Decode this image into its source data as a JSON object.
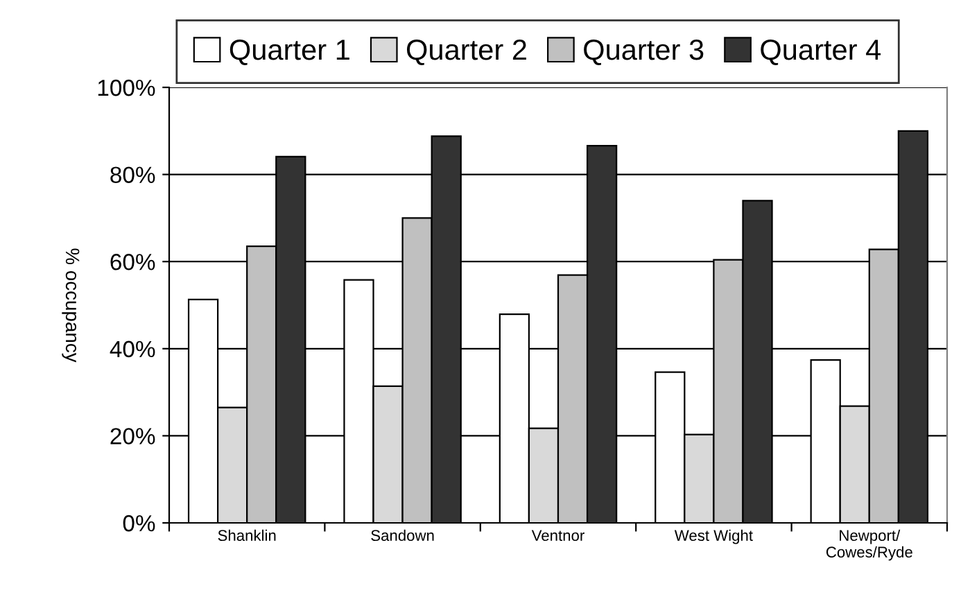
{
  "chart_data": {
    "type": "bar",
    "ylabel": "% occupancy",
    "categories": [
      "Shanklin",
      "Sandown",
      "Ventnor",
      "West Wight",
      "Newport/\nCowes/Ryde"
    ],
    "series": [
      {
        "name": "Quarter 1",
        "color": "#ffffff",
        "values": [
          51.3,
          55.8,
          47.9,
          34.6,
          37.4
        ]
      },
      {
        "name": "Quarter 2",
        "color": "#d9d9d9",
        "values": [
          26.5,
          31.4,
          21.7,
          20.3,
          26.8
        ]
      },
      {
        "name": "Quarter 3",
        "color": "#c0c0c0",
        "values": [
          63.5,
          70,
          56.9,
          60.4,
          62.8
        ]
      },
      {
        "name": "Quarter 4",
        "color": "#333333",
        "values": [
          84.1,
          88.8,
          86.6,
          74,
          90
        ]
      }
    ],
    "ylim": [
      0,
      100
    ],
    "yticks": [
      {
        "value": 0,
        "label": "0%"
      },
      {
        "value": 20,
        "label": "20%"
      },
      {
        "value": 40,
        "label": "40%"
      },
      {
        "value": 60,
        "label": "60%"
      },
      {
        "value": 80,
        "label": "80%"
      },
      {
        "value": 100,
        "label": "100%"
      }
    ],
    "grid": "y",
    "legend": "top"
  }
}
